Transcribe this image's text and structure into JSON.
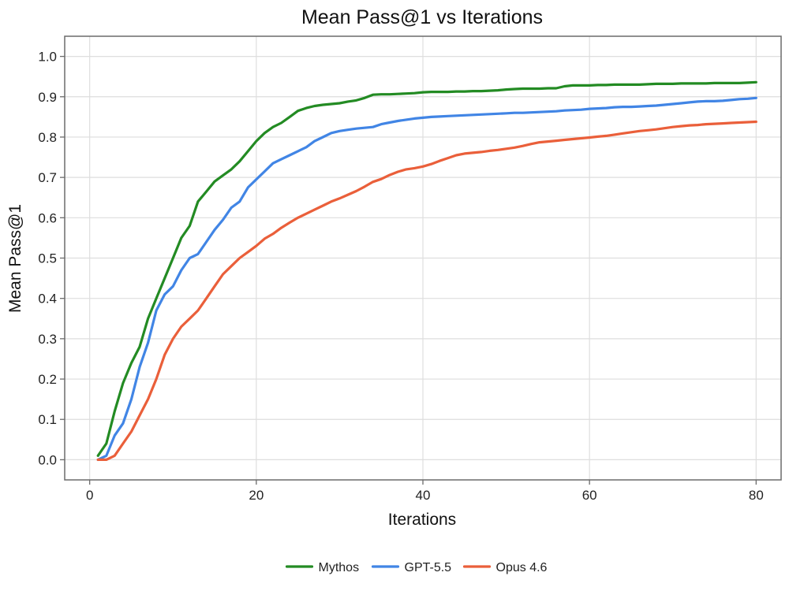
{
  "chart_data": {
    "type": "line",
    "title": "Mean Pass@1 vs Iterations",
    "xlabel": "Iterations",
    "ylabel": "Mean Pass@1",
    "xlim": [
      -3,
      83
    ],
    "ylim": [
      -0.05,
      1.05
    ],
    "x_ticks": [
      0,
      20,
      40,
      60,
      80
    ],
    "y_ticks": [
      0.0,
      0.1,
      0.2,
      0.3,
      0.4,
      0.5,
      0.6,
      0.7,
      0.8,
      0.9,
      1.0
    ],
    "x_tick_labels": [
      "0",
      "20",
      "40",
      "60",
      "80"
    ],
    "y_tick_labels": [
      "0.0",
      "0.1",
      "0.2",
      "0.3",
      "0.4",
      "0.5",
      "0.6",
      "0.7",
      "0.8",
      "0.9",
      "1.0"
    ],
    "grid": true,
    "legend_position": "bottom",
    "x": [
      1,
      2,
      3,
      4,
      5,
      6,
      7,
      8,
      9,
      10,
      11,
      12,
      13,
      14,
      15,
      16,
      17,
      18,
      19,
      20,
      21,
      22,
      23,
      24,
      25,
      26,
      27,
      28,
      29,
      30,
      31,
      32,
      33,
      34,
      35,
      36,
      37,
      38,
      39,
      40,
      41,
      42,
      43,
      44,
      45,
      46,
      47,
      48,
      49,
      50,
      51,
      52,
      53,
      54,
      55,
      56,
      57,
      58,
      59,
      60,
      61,
      62,
      63,
      64,
      65,
      66,
      67,
      68,
      69,
      70,
      71,
      72,
      73,
      74,
      75,
      76,
      77,
      78,
      79,
      80
    ],
    "series": [
      {
        "name": "Mythos",
        "color": "#238b23",
        "values": [
          0.01,
          0.04,
          0.12,
          0.19,
          0.24,
          0.28,
          0.35,
          0.4,
          0.45,
          0.5,
          0.55,
          0.58,
          0.64,
          0.665,
          0.69,
          0.705,
          0.72,
          0.74,
          0.765,
          0.79,
          0.81,
          0.825,
          0.835,
          0.85,
          0.865,
          0.872,
          0.877,
          0.88,
          0.882,
          0.884,
          0.888,
          0.891,
          0.897,
          0.905,
          0.906,
          0.906,
          0.907,
          0.908,
          0.909,
          0.911,
          0.912,
          0.912,
          0.912,
          0.913,
          0.913,
          0.914,
          0.914,
          0.915,
          0.916,
          0.918,
          0.919,
          0.92,
          0.92,
          0.92,
          0.921,
          0.921,
          0.926,
          0.928,
          0.928,
          0.928,
          0.929,
          0.929,
          0.93,
          0.93,
          0.93,
          0.93,
          0.931,
          0.932,
          0.932,
          0.932,
          0.933,
          0.933,
          0.933,
          0.933,
          0.934,
          0.934,
          0.934,
          0.934,
          0.935,
          0.936
        ]
      },
      {
        "name": "GPT-5.5",
        "color": "#4185e5",
        "values": [
          0.0,
          0.01,
          0.06,
          0.09,
          0.15,
          0.23,
          0.29,
          0.37,
          0.41,
          0.43,
          0.47,
          0.5,
          0.51,
          0.54,
          0.57,
          0.595,
          0.625,
          0.64,
          0.675,
          0.695,
          0.715,
          0.735,
          0.745,
          0.755,
          0.765,
          0.775,
          0.79,
          0.8,
          0.81,
          0.815,
          0.818,
          0.821,
          0.823,
          0.825,
          0.832,
          0.836,
          0.84,
          0.843,
          0.846,
          0.848,
          0.85,
          0.851,
          0.852,
          0.853,
          0.854,
          0.855,
          0.856,
          0.857,
          0.858,
          0.859,
          0.86,
          0.86,
          0.861,
          0.862,
          0.863,
          0.864,
          0.866,
          0.867,
          0.868,
          0.87,
          0.871,
          0.872,
          0.874,
          0.875,
          0.875,
          0.876,
          0.877,
          0.878,
          0.88,
          0.882,
          0.884,
          0.886,
          0.888,
          0.889,
          0.889,
          0.89,
          0.892,
          0.894,
          0.895,
          0.897
        ]
      },
      {
        "name": "Opus 4.6",
        "color": "#ea5f3a",
        "values": [
          0.0,
          0.0,
          0.01,
          0.04,
          0.07,
          0.11,
          0.15,
          0.2,
          0.26,
          0.3,
          0.33,
          0.35,
          0.37,
          0.4,
          0.43,
          0.46,
          0.48,
          0.5,
          0.515,
          0.53,
          0.548,
          0.56,
          0.575,
          0.588,
          0.6,
          0.61,
          0.62,
          0.63,
          0.64,
          0.648,
          0.657,
          0.666,
          0.677,
          0.689,
          0.696,
          0.706,
          0.714,
          0.72,
          0.723,
          0.727,
          0.733,
          0.741,
          0.748,
          0.755,
          0.759,
          0.761,
          0.763,
          0.766,
          0.768,
          0.771,
          0.774,
          0.778,
          0.783,
          0.787,
          0.789,
          0.791,
          0.793,
          0.795,
          0.797,
          0.799,
          0.801,
          0.803,
          0.806,
          0.809,
          0.812,
          0.815,
          0.817,
          0.819,
          0.822,
          0.825,
          0.827,
          0.829,
          0.83,
          0.832,
          0.833,
          0.834,
          0.835,
          0.836,
          0.837,
          0.838
        ]
      }
    ]
  }
}
